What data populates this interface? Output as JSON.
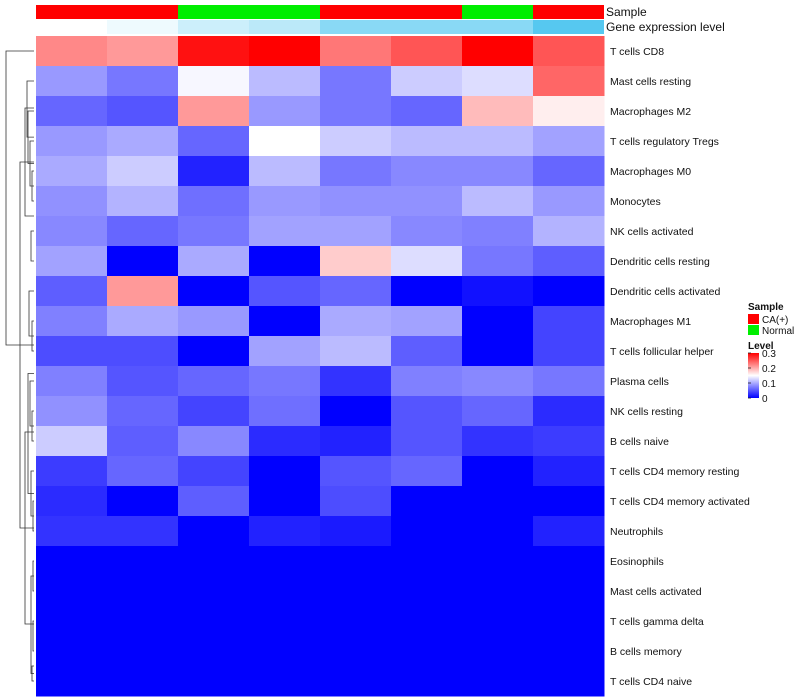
{
  "chart_data": {
    "type": "heatmap",
    "annotation_labels": {
      "sample": "Sample",
      "expression": "Gene expression level"
    },
    "sample_groups": [
      "CA(+)",
      "CA(+)",
      "Normal",
      "Normal",
      "CA(+)",
      "CA(+)",
      "Normal",
      "CA(+)"
    ],
    "expression_levels": [
      0.03,
      0.04,
      0.06,
      0.07,
      0.1,
      0.1,
      0.1,
      0.13
    ],
    "rows": [
      "T cells CD8",
      "Mast cells resting",
      "Macrophages M2",
      "T cells regulatory  Tregs",
      "Macrophages M0",
      "Monocytes",
      "NK cells activated",
      "Dendritic cells resting",
      "Dendritic cells activated",
      "Macrophages M1",
      "T cells follicular helper",
      "Plasma cells",
      "NK cells resting",
      "B cells naive",
      "T cells CD4 memory resting",
      "T cells CD4 memory activated",
      "Neutrophils",
      "Eosinophils",
      "Mast cells activated",
      "T cells gamma delta",
      "B cells memory",
      "T cells CD4 naive"
    ],
    "values": [
      [
        0.22,
        0.21,
        0.29,
        0.3,
        0.23,
        0.25,
        0.3,
        0.25
      ],
      [
        0.09,
        0.07,
        0.145,
        0.11,
        0.07,
        0.12,
        0.13,
        0.24
      ],
      [
        0.06,
        0.05,
        0.21,
        0.09,
        0.07,
        0.06,
        0.19,
        0.16
      ],
      [
        0.09,
        0.1,
        0.06,
        0.15,
        0.12,
        0.11,
        0.11,
        0.095
      ],
      [
        0.1,
        0.12,
        0.02,
        0.11,
        0.07,
        0.08,
        0.08,
        0.06
      ],
      [
        0.085,
        0.105,
        0.065,
        0.09,
        0.085,
        0.085,
        0.11,
        0.09
      ],
      [
        0.08,
        0.06,
        0.07,
        0.095,
        0.095,
        0.08,
        0.075,
        0.105
      ],
      [
        0.095,
        0.0,
        0.1,
        0.0,
        0.18,
        0.13,
        0.07,
        0.055
      ],
      [
        0.055,
        0.21,
        0.0,
        0.05,
        0.06,
        0.0,
        0.01,
        0.0
      ],
      [
        0.075,
        0.1,
        0.09,
        0.0,
        0.1,
        0.095,
        0.0,
        0.04
      ],
      [
        0.045,
        0.045,
        0.0,
        0.095,
        0.11,
        0.055,
        0.0,
        0.04
      ],
      [
        0.075,
        0.05,
        0.06,
        0.07,
        0.03,
        0.075,
        0.08,
        0.07
      ],
      [
        0.085,
        0.06,
        0.04,
        0.065,
        0.0,
        0.05,
        0.06,
        0.025
      ],
      [
        0.12,
        0.055,
        0.08,
        0.025,
        0.02,
        0.05,
        0.03,
        0.035
      ],
      [
        0.035,
        0.06,
        0.04,
        0.0,
        0.05,
        0.06,
        0.0,
        0.02
      ],
      [
        0.025,
        0.0,
        0.055,
        0.0,
        0.045,
        0.0,
        0.0,
        0.0
      ],
      [
        0.03,
        0.03,
        0.0,
        0.02,
        0.015,
        0.0,
        0.0,
        0.02
      ],
      [
        0.0,
        0.0,
        0.0,
        0.0,
        0.0,
        0.0,
        0.0,
        0.0
      ],
      [
        0.0,
        0.0,
        0.0,
        0.0,
        0.0,
        0.0,
        0.0,
        0.0
      ],
      [
        0.0,
        0.0,
        0.0,
        0.0,
        0.0,
        0.0,
        0.0,
        0.0
      ],
      [
        0.0,
        0.0,
        0.0,
        0.0,
        0.0,
        0.0,
        0.0,
        0.0
      ],
      [
        0.0,
        0.0,
        0.0,
        0.0,
        0.0,
        0.0,
        0.0,
        0.0
      ]
    ],
    "color_scale": {
      "low": "#0000ff",
      "mid": "#ffffff",
      "high": "#ff0000",
      "min": 0,
      "mid_value": 0.15,
      "max": 0.3
    },
    "expression_scale": {
      "low": "#ffffff",
      "high": "#56c8f0"
    },
    "legend": {
      "sample_title": "Sample",
      "sample_entries": [
        {
          "label": "CA(+)",
          "color": "#ff0000"
        },
        {
          "label": "Normal",
          "color": "#00ee00"
        }
      ],
      "level_title": "Level",
      "level_ticks": [
        "0.3",
        "0.2",
        "0.1",
        "0"
      ],
      "placement": "right"
    },
    "dendrogram": "hierarchical clustering of rows (left)"
  }
}
